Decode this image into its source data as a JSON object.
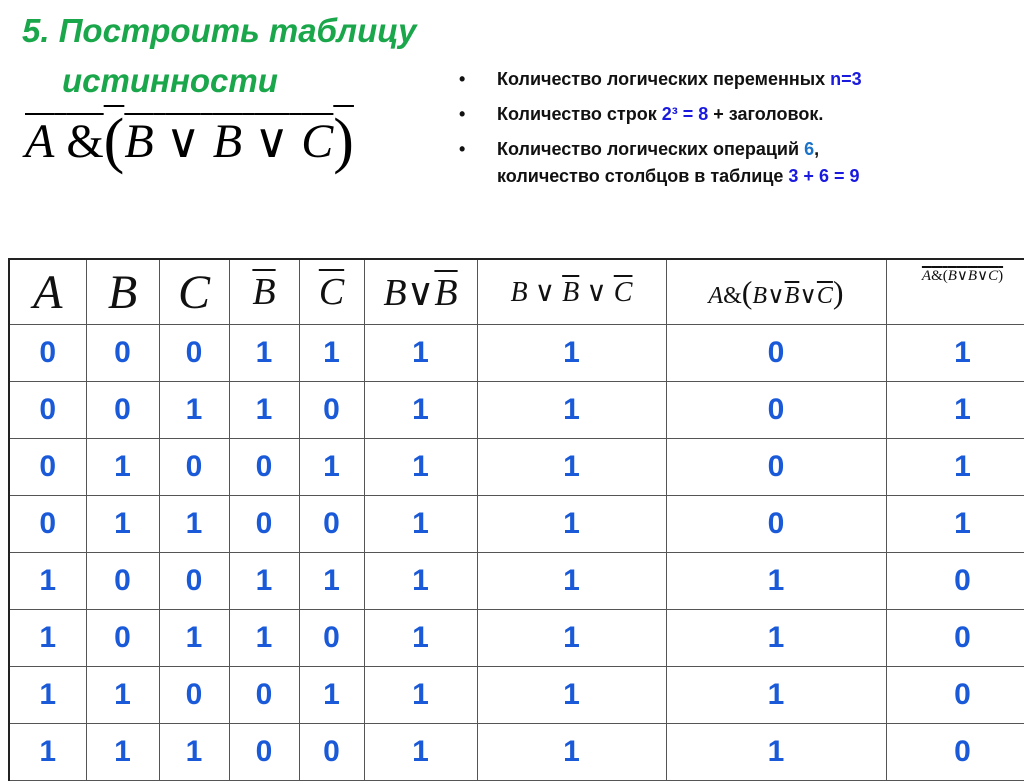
{
  "title": {
    "line1": "5. Построить  таблицу",
    "line2": "истинности"
  },
  "formula": {
    "a": "A",
    "amp": "&",
    "lp": "(",
    "b": "B",
    "or": "∨",
    "nb": "B",
    "nc": "C",
    "rp": ")"
  },
  "bullets": [
    {
      "text": "Количество логических переменных ",
      "highlight": "n=3"
    },
    {
      "text": "Количество строк  ",
      "highlight": "2³ = 8",
      "tail": " + заголовок."
    },
    {
      "text": " Количество логических операций  ",
      "highlight": "6",
      "tail": ","
    },
    {
      "text": "количество столбцов в таблице ",
      "highlight": "3 + 6 = 9"
    }
  ],
  "table": {
    "headers": [
      "A",
      "B",
      "C",
      "B",
      "C",
      "B ∨ B",
      "B ∨ B ∨ C",
      "A&(B∨B∨C)",
      "A&(B∨B∨C)"
    ],
    "rows": [
      [
        "0",
        "0",
        "0",
        "1",
        "1",
        "1",
        "1",
        "0",
        "1"
      ],
      [
        "0",
        "0",
        "1",
        "1",
        "0",
        "1",
        "1",
        "0",
        "1"
      ],
      [
        "0",
        "1",
        "0",
        "0",
        "1",
        "1",
        "1",
        "0",
        "1"
      ],
      [
        "0",
        "1",
        "1",
        "0",
        "0",
        "1",
        "1",
        "0",
        "1"
      ],
      [
        "1",
        "0",
        "0",
        "1",
        "1",
        "1",
        "1",
        "1",
        "0"
      ],
      [
        "1",
        "0",
        "1",
        "1",
        "0",
        "1",
        "1",
        "1",
        "0"
      ],
      [
        "1",
        "1",
        "0",
        "0",
        "1",
        "1",
        "1",
        "1",
        "0"
      ],
      [
        "1",
        "1",
        "1",
        "0",
        "0",
        "1",
        "1",
        "1",
        "0"
      ]
    ]
  },
  "colors": {
    "title": "#1aa64a",
    "values": "#1a5ad8",
    "highlight": "#1a1adf"
  }
}
